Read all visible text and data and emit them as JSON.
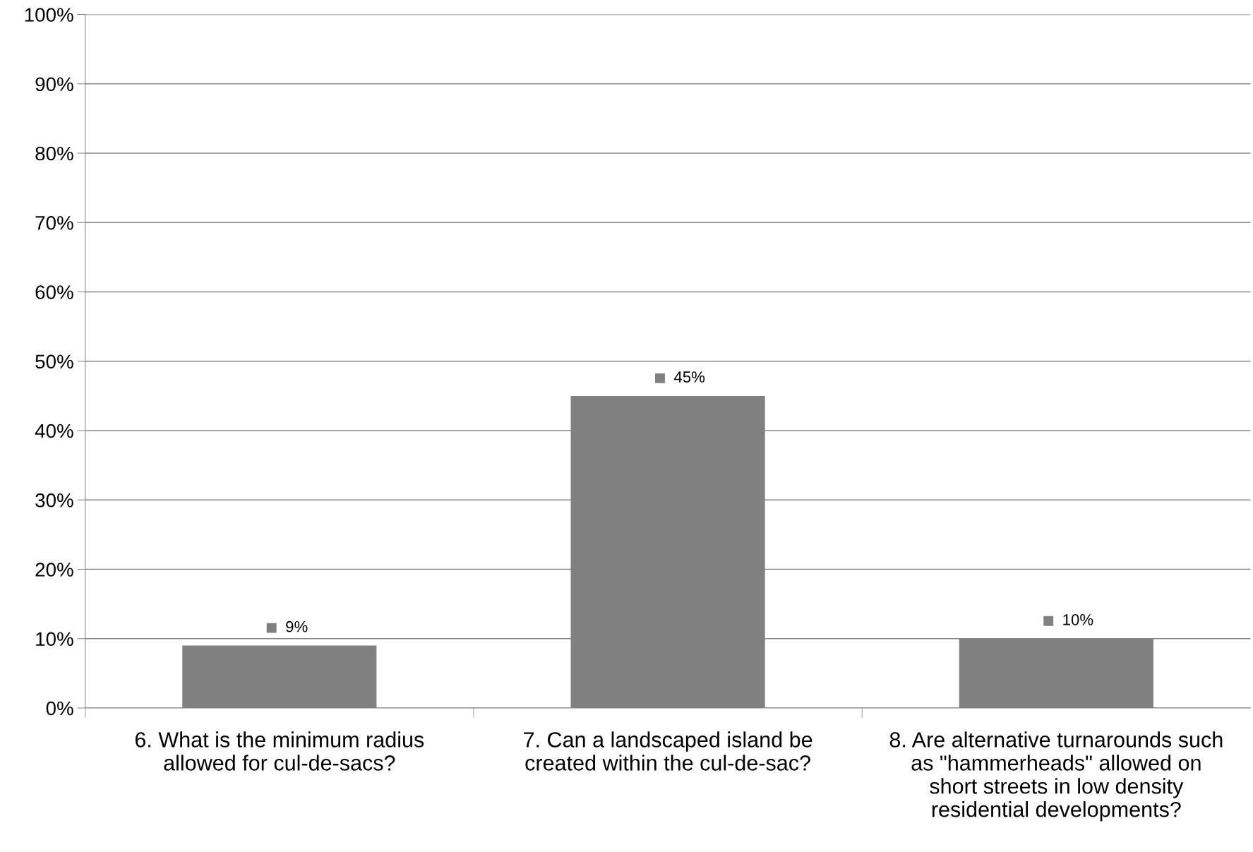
{
  "chart_data": {
    "type": "bar",
    "categories": [
      "6. What is the minimum radius\nallowed for cul-de-sacs?",
      "7. Can a landscaped island be\ncreated within the cul-de-sac?",
      "8. Are alternative turnarounds such\nas \"hammerheads\" allowed on\nshort streets in low density\nresidential developments?"
    ],
    "values": [
      9,
      45,
      10
    ],
    "color": "#808080",
    "ylim": [
      0,
      100
    ],
    "yticks": [
      {
        "value": 0,
        "label": "0%"
      },
      {
        "value": 10,
        "label": "10%"
      },
      {
        "value": 20,
        "label": "20%"
      },
      {
        "value": 30,
        "label": "30%"
      },
      {
        "value": 40,
        "label": "40%"
      },
      {
        "value": 50,
        "label": "50%"
      },
      {
        "value": 60,
        "label": "60%"
      },
      {
        "value": 70,
        "label": "70%"
      },
      {
        "value": 80,
        "label": "80%"
      },
      {
        "value": 90,
        "label": "90%"
      },
      {
        "value": 100,
        "label": "100%"
      }
    ],
    "grid": "y",
    "value_labels": [
      "9%",
      "45%",
      "10%"
    ]
  }
}
